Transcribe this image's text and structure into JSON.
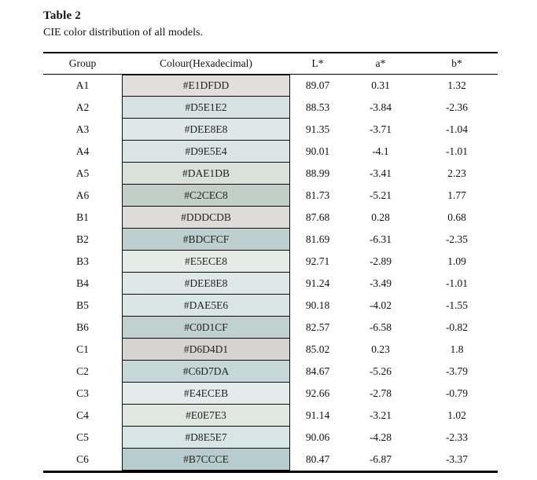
{
  "title": "Table 2",
  "caption": "CIE color distribution of all models.",
  "table": {
    "headers": {
      "group": "Group",
      "colour": "Colour(Hexadecimal)",
      "l": "L*",
      "a": "a*",
      "b": "b*"
    },
    "rows": [
      {
        "group": "A1",
        "hex": "#E1DFDD",
        "l": "89.07",
        "a": "0.31",
        "b": "1.32"
      },
      {
        "group": "A2",
        "hex": "#D5E1E2",
        "l": "88.53",
        "a": "-3.84",
        "b": "-2.36"
      },
      {
        "group": "A3",
        "hex": "#DEE8E8",
        "l": "91.35",
        "a": "-3.71",
        "b": "-1.04"
      },
      {
        "group": "A4",
        "hex": "#D9E5E4",
        "l": "90.01",
        "a": "-4.1",
        "b": "-1.01"
      },
      {
        "group": "A5",
        "hex": "#DAE1DB",
        "l": "88.99",
        "a": "-3.41",
        "b": "2.23"
      },
      {
        "group": "A6",
        "hex": "#C2CEC8",
        "l": "81.73",
        "a": "-5.21",
        "b": "1.77"
      },
      {
        "group": "B1",
        "hex": "#DDDCDB",
        "l": "87.68",
        "a": "0.28",
        "b": "0.68"
      },
      {
        "group": "B2",
        "hex": "#BDCFCF",
        "l": "81.69",
        "a": "-6.31",
        "b": "-2.35"
      },
      {
        "group": "B3",
        "hex": "#E5ECE8",
        "l": "92.71",
        "a": "-2.89",
        "b": "1.09"
      },
      {
        "group": "B4",
        "hex": "#DEE8E8",
        "l": "91.24",
        "a": "-3.49",
        "b": "-1.01"
      },
      {
        "group": "B5",
        "hex": "#DAE5E6",
        "l": "90.18",
        "a": "-4.02",
        "b": "-1.55"
      },
      {
        "group": "B6",
        "hex": "#C0D1CF",
        "l": "82.57",
        "a": "-6.58",
        "b": "-0.82"
      },
      {
        "group": "C1",
        "hex": "#D6D4D1",
        "l": "85.02",
        "a": "0.23",
        "b": "1.8"
      },
      {
        "group": "C2",
        "hex": "#C6D7DA",
        "l": "84.67",
        "a": "-5.26",
        "b": "-3.79"
      },
      {
        "group": "C3",
        "hex": "#E4ECEB",
        "l": "92.66",
        "a": "-2.78",
        "b": "-0.79"
      },
      {
        "group": "C4",
        "hex": "#E0E7E3",
        "l": "91.14",
        "a": "-3.21",
        "b": "1.02"
      },
      {
        "group": "C5",
        "hex": "#D8E5E7",
        "l": "90.06",
        "a": "-4.28",
        "b": "-2.33"
      },
      {
        "group": "C6",
        "hex": "#B7CCCE",
        "l": "80.47",
        "a": "-6.87",
        "b": "-3.37"
      }
    ]
  },
  "colors": {
    "rule": "#000000",
    "text": "#111111",
    "background": "#ffffff"
  }
}
